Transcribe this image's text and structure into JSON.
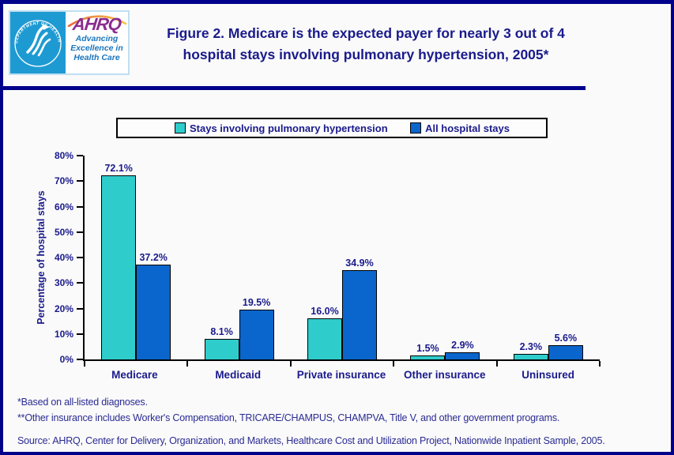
{
  "page": {
    "background": "#FAFAFA",
    "border_color": "#00008B"
  },
  "header": {
    "logo": {
      "seal_text": "DEPARTMENT OF HEALTH & HUMAN SERVICES • USA",
      "wordmark": "AHRQ",
      "tagline": [
        "Advancing",
        "Excellence in",
        "Health Care"
      ]
    },
    "title_lines": [
      "Figure 2. Medicare is the expected payer for nearly 3 out of 4",
      "hospital stays involving pulmonary hypertension, 2005*"
    ]
  },
  "chart_data": {
    "type": "bar",
    "title": "Figure 2. Medicare is the expected payer for nearly 3 out of 4 hospital stays involving pulmonary hypertension, 2005*",
    "categories": [
      "Medicare",
      "Medicaid",
      "Private insurance",
      "Other insurance",
      "Uninsured"
    ],
    "series": [
      {
        "name": "Stays involving pulmonary hypertension",
        "color": "#2FCCCC",
        "values": [
          72.1,
          8.1,
          16.0,
          1.5,
          2.3
        ],
        "labels": [
          "72.1%",
          "8.1%",
          "16.0%",
          "1.5%",
          "2.3%"
        ]
      },
      {
        "name": "All hospital stays",
        "color": "#0A66CC",
        "values": [
          37.2,
          19.5,
          34.9,
          2.9,
          5.6
        ],
        "labels": [
          "37.2%",
          "19.5%",
          "34.9%",
          "2.9%",
          "5.6%"
        ]
      }
    ],
    "xlabel": "",
    "ylabel": "Percentage of hospital stays",
    "ylim": [
      0,
      80
    ],
    "ytick_step": 10,
    "ytick_labels": [
      "0%",
      "10%",
      "20%",
      "30%",
      "40%",
      "50%",
      "60%",
      "70%",
      "80%"
    ],
    "legend_position": "top-center",
    "grid": false
  },
  "footnotes": {
    "note1": "*Based on all-listed diagnoses.",
    "note2": "**Other insurance includes Worker's Compensation, TRICARE/CHAMPUS, CHAMPVA, Title V, and other government programs.",
    "source": "Source: AHRQ, Center for Delivery, Organization, and Markets, Healthcare Cost and Utilization Project, Nationwide Inpatient Sample, 2005."
  }
}
